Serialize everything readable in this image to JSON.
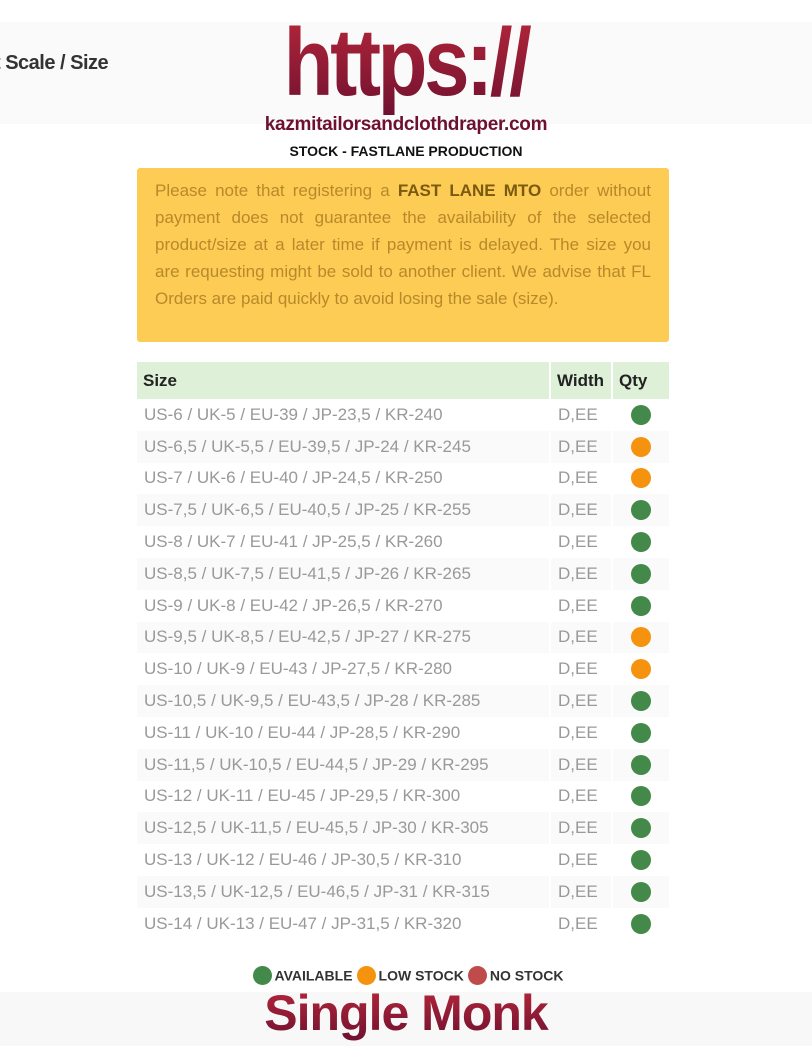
{
  "header": {
    "breadcrumb": "t Scale / Size",
    "logo_text": "https://",
    "domain": "kazmitailorsandclothdraper.com",
    "subtitle": "STOCK - FASTLANE PRODUCTION"
  },
  "notice": {
    "pre": "Please note that registering a ",
    "bold": "FAST LANE MTO",
    "post": " order without payment does not guarantee the availability of the selected product/size at a later time if payment is delayed. The size you are requesting might be sold to another client. We advise that FL Orders are paid quickly to avoid losing the sale (size)."
  },
  "table": {
    "headers": [
      "Size",
      "Width",
      "Qty"
    ],
    "rows": [
      {
        "size": "US-6 / UK-5 / EU-39 / JP-23,5 / KR-240",
        "width": "D,EE",
        "status": "available"
      },
      {
        "size": "US-6,5 / UK-5,5 / EU-39,5 / JP-24 / KR-245",
        "width": "D,EE",
        "status": "low"
      },
      {
        "size": "US-7 / UK-6 / EU-40 / JP-24,5 / KR-250",
        "width": "D,EE",
        "status": "low"
      },
      {
        "size": "US-7,5 / UK-6,5 / EU-40,5 / JP-25 / KR-255",
        "width": "D,EE",
        "status": "available"
      },
      {
        "size": "US-8 / UK-7 / EU-41 / JP-25,5 / KR-260",
        "width": "D,EE",
        "status": "available"
      },
      {
        "size": "US-8,5 / UK-7,5 / EU-41,5 / JP-26 / KR-265",
        "width": "D,EE",
        "status": "available"
      },
      {
        "size": "US-9 / UK-8 / EU-42 / JP-26,5 / KR-270",
        "width": "D,EE",
        "status": "available"
      },
      {
        "size": "US-9,5 / UK-8,5 / EU-42,5 / JP-27 / KR-275",
        "width": "D,EE",
        "status": "low"
      },
      {
        "size": "US-10 / UK-9 / EU-43 / JP-27,5 / KR-280",
        "width": "D,EE",
        "status": "low"
      },
      {
        "size": "US-10,5 / UK-9,5 / EU-43,5 / JP-28 / KR-285",
        "width": "D,EE",
        "status": "available"
      },
      {
        "size": "US-11 / UK-10 / EU-44 / JP-28,5 / KR-290",
        "width": "D,EE",
        "status": "available"
      },
      {
        "size": "US-11,5 / UK-10,5 / EU-44,5 / JP-29 / KR-295",
        "width": "D,EE",
        "status": "available"
      },
      {
        "size": "US-12 / UK-11 / EU-45 / JP-29,5 / KR-300",
        "width": "D,EE",
        "status": "available"
      },
      {
        "size": "US-12,5 / UK-11,5 / EU-45,5 / JP-30 / KR-305",
        "width": "D,EE",
        "status": "available"
      },
      {
        "size": "US-13 / UK-12 / EU-46 / JP-30,5 / KR-310",
        "width": "D,EE",
        "status": "available"
      },
      {
        "size": "US-13,5 / UK-12,5 / EU-46,5 / JP-31 / KR-315",
        "width": "D,EE",
        "status": "available"
      },
      {
        "size": "US-14 / UK-13 / EU-47 / JP-31,5 / KR-320",
        "width": "D,EE",
        "status": "available"
      }
    ]
  },
  "colors": {
    "available": "#43894a",
    "low": "#f5930f",
    "none": "#bf4b4b"
  },
  "legend": [
    {
      "key": "available",
      "label": "AVAILABLE"
    },
    {
      "key": "low",
      "label": "LOW STOCK"
    },
    {
      "key": "none",
      "label": "NO STOCK"
    }
  ],
  "footer": {
    "product": "Single Monk"
  }
}
